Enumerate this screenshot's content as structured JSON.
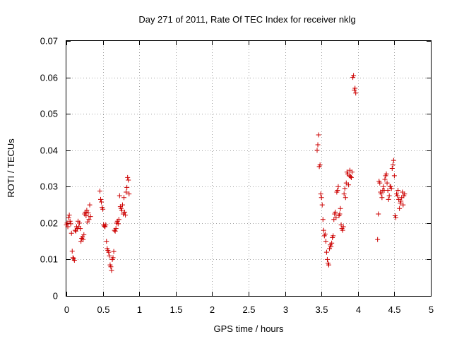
{
  "chart_data": {
    "type": "scatter",
    "title": "Day 271 of 2011, Rate Of TEC Index for receiver nklg",
    "xlabel": "GPS time / hours",
    "ylabel": "ROTI / TECUs",
    "xlim": [
      0,
      5
    ],
    "ylim": [
      0,
      0.07
    ],
    "grid": true,
    "marker": "plus",
    "color": "#cc0000",
    "xticks": [
      "0",
      "0.5",
      "1",
      "1.5",
      "2",
      "2.5",
      "3",
      "3.5",
      "4",
      "4.5",
      "5"
    ],
    "yticks": [
      "0",
      "0.01",
      "0.02",
      "0.03",
      "0.04",
      "0.05",
      "0.06",
      "0.07"
    ],
    "series": [
      {
        "name": "ROTI",
        "points": [
          [
            0.0,
            0.0195
          ],
          [
            0.01,
            0.02
          ],
          [
            0.02,
            0.019
          ],
          [
            0.03,
            0.0215
          ],
          [
            0.04,
            0.0222
          ],
          [
            0.05,
            0.0205
          ],
          [
            0.06,
            0.0198
          ],
          [
            0.07,
            0.0172
          ],
          [
            0.08,
            0.0123
          ],
          [
            0.09,
            0.0105
          ],
          [
            0.1,
            0.0102
          ],
          [
            0.11,
            0.0098
          ],
          [
            0.12,
            0.018
          ],
          [
            0.13,
            0.0178
          ],
          [
            0.14,
            0.019
          ],
          [
            0.15,
            0.0185
          ],
          [
            0.16,
            0.0205
          ],
          [
            0.17,
            0.019
          ],
          [
            0.18,
            0.02
          ],
          [
            0.19,
            0.0185
          ],
          [
            0.2,
            0.015
          ],
          [
            0.21,
            0.0158
          ],
          [
            0.22,
            0.0162
          ],
          [
            0.23,
            0.0155
          ],
          [
            0.24,
            0.0168
          ],
          [
            0.25,
            0.0225
          ],
          [
            0.26,
            0.023
          ],
          [
            0.27,
            0.022
          ],
          [
            0.28,
            0.0235
          ],
          [
            0.29,
            0.0203
          ],
          [
            0.3,
            0.0228
          ],
          [
            0.31,
            0.021
          ],
          [
            0.32,
            0.025
          ],
          [
            0.33,
            0.0218
          ],
          [
            0.46,
            0.0288
          ],
          [
            0.47,
            0.0265
          ],
          [
            0.48,
            0.0258
          ],
          [
            0.49,
            0.0243
          ],
          [
            0.5,
            0.0238
          ],
          [
            0.51,
            0.0195
          ],
          [
            0.52,
            0.0192
          ],
          [
            0.53,
            0.019
          ],
          [
            0.54,
            0.0195
          ],
          [
            0.55,
            0.015
          ],
          [
            0.56,
            0.013
          ],
          [
            0.57,
            0.0125
          ],
          [
            0.58,
            0.012
          ],
          [
            0.59,
            0.011
          ],
          [
            0.6,
            0.0085
          ],
          [
            0.61,
            0.008
          ],
          [
            0.62,
            0.007
          ],
          [
            0.63,
            0.01
          ],
          [
            0.64,
            0.0105
          ],
          [
            0.65,
            0.0122
          ],
          [
            0.66,
            0.018
          ],
          [
            0.67,
            0.0178
          ],
          [
            0.68,
            0.0185
          ],
          [
            0.69,
            0.02
          ],
          [
            0.7,
            0.0205
          ],
          [
            0.71,
            0.0198
          ],
          [
            0.72,
            0.021
          ],
          [
            0.73,
            0.0275
          ],
          [
            0.74,
            0.0245
          ],
          [
            0.75,
            0.024
          ],
          [
            0.76,
            0.0235
          ],
          [
            0.77,
            0.025
          ],
          [
            0.78,
            0.0225
          ],
          [
            0.79,
            0.027
          ],
          [
            0.8,
            0.023
          ],
          [
            0.81,
            0.0222
          ],
          [
            0.82,
            0.0285
          ],
          [
            0.83,
            0.0298
          ],
          [
            0.84,
            0.0325
          ],
          [
            0.85,
            0.0318
          ],
          [
            0.86,
            0.028
          ],
          [
            3.44,
            0.04
          ],
          [
            3.45,
            0.0415
          ],
          [
            3.46,
            0.0442
          ],
          [
            3.47,
            0.0355
          ],
          [
            3.48,
            0.036
          ],
          [
            3.49,
            0.028
          ],
          [
            3.5,
            0.027
          ],
          [
            3.51,
            0.025
          ],
          [
            3.52,
            0.021
          ],
          [
            3.53,
            0.018
          ],
          [
            3.54,
            0.0165
          ],
          [
            3.55,
            0.017
          ],
          [
            3.56,
            0.015
          ],
          [
            3.57,
            0.012
          ],
          [
            3.58,
            0.01
          ],
          [
            3.59,
            0.009
          ],
          [
            3.6,
            0.0085
          ],
          [
            3.61,
            0.013
          ],
          [
            3.62,
            0.014
          ],
          [
            3.63,
            0.0135
          ],
          [
            3.64,
            0.0145
          ],
          [
            3.65,
            0.016
          ],
          [
            3.66,
            0.0165
          ],
          [
            3.67,
            0.021
          ],
          [
            3.68,
            0.0225
          ],
          [
            3.69,
            0.023
          ],
          [
            3.7,
            0.0215
          ],
          [
            3.71,
            0.0285
          ],
          [
            3.72,
            0.029
          ],
          [
            3.73,
            0.03
          ],
          [
            3.74,
            0.022
          ],
          [
            3.75,
            0.0225
          ],
          [
            3.76,
            0.024
          ],
          [
            3.77,
            0.0195
          ],
          [
            3.78,
            0.0185
          ],
          [
            3.79,
            0.018
          ],
          [
            3.8,
            0.019
          ],
          [
            3.81,
            0.028
          ],
          [
            3.82,
            0.0295
          ],
          [
            3.83,
            0.027
          ],
          [
            3.84,
            0.031
          ],
          [
            3.85,
            0.034
          ],
          [
            3.86,
            0.0335
          ],
          [
            3.87,
            0.0305
          ],
          [
            3.88,
            0.033
          ],
          [
            3.89,
            0.0345
          ],
          [
            3.9,
            0.0328
          ],
          [
            3.91,
            0.0325
          ],
          [
            3.92,
            0.034
          ],
          [
            3.93,
            0.06
          ],
          [
            3.94,
            0.0605
          ],
          [
            3.95,
            0.0565
          ],
          [
            3.96,
            0.057
          ],
          [
            3.97,
            0.0557
          ],
          [
            4.27,
            0.0155
          ],
          [
            4.28,
            0.0225
          ],
          [
            4.29,
            0.0315
          ],
          [
            4.3,
            0.031
          ],
          [
            4.31,
            0.0285
          ],
          [
            4.32,
            0.028
          ],
          [
            4.33,
            0.027
          ],
          [
            4.34,
            0.029
          ],
          [
            4.35,
            0.03
          ],
          [
            4.36,
            0.029
          ],
          [
            4.37,
            0.032
          ],
          [
            4.38,
            0.033
          ],
          [
            4.39,
            0.0335
          ],
          [
            4.4,
            0.031
          ],
          [
            4.41,
            0.029
          ],
          [
            4.42,
            0.0265
          ],
          [
            4.43,
            0.0275
          ],
          [
            4.44,
            0.03
          ],
          [
            4.45,
            0.03
          ],
          [
            4.46,
            0.0295
          ],
          [
            4.47,
            0.035
          ],
          [
            4.48,
            0.036
          ],
          [
            4.49,
            0.0372
          ],
          [
            4.5,
            0.033
          ],
          [
            4.51,
            0.022
          ],
          [
            4.52,
            0.0215
          ],
          [
            4.53,
            0.028
          ],
          [
            4.54,
            0.0275
          ],
          [
            4.55,
            0.029
          ],
          [
            4.56,
            0.0265
          ],
          [
            4.57,
            0.024
          ],
          [
            4.58,
            0.0255
          ],
          [
            4.59,
            0.026
          ],
          [
            4.6,
            0.027
          ],
          [
            4.61,
            0.0285
          ],
          [
            4.62,
            0.025
          ],
          [
            4.63,
            0.0275
          ],
          [
            4.64,
            0.028
          ]
        ]
      }
    ]
  }
}
